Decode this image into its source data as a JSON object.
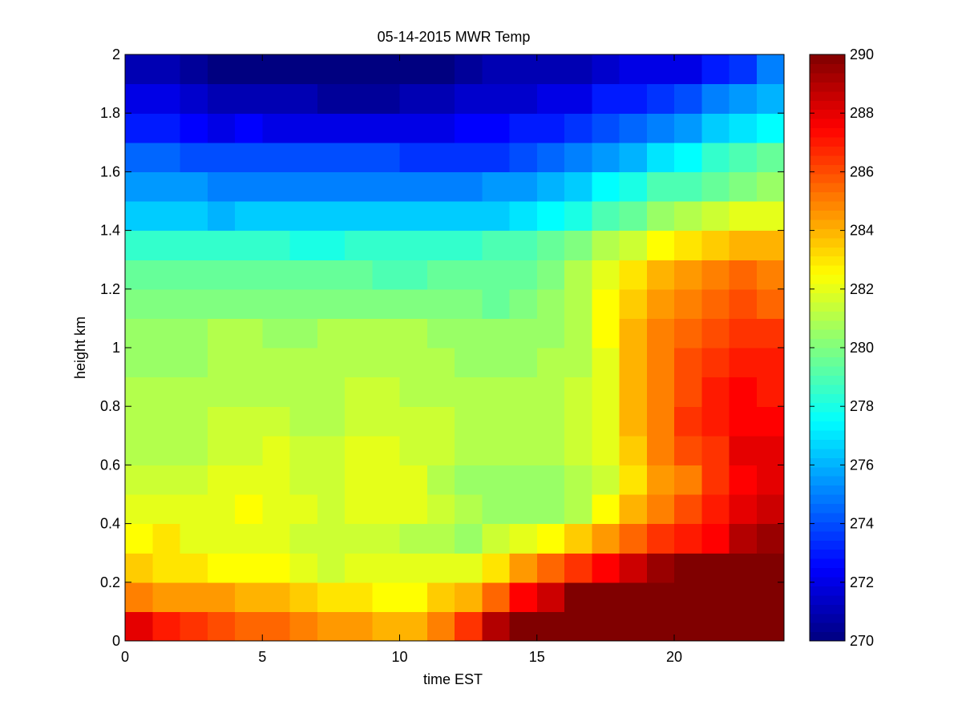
{
  "chart_data": {
    "type": "heatmap",
    "title": "05-14-2015 MWR Temp",
    "xlabel": "time EST",
    "ylabel": "height km",
    "xlim": [
      0,
      24
    ],
    "ylim": [
      0,
      2
    ],
    "xticks": [
      0,
      5,
      10,
      15,
      20
    ],
    "yticks": [
      0,
      0.2,
      0.4,
      0.6,
      0.8,
      1,
      1.2,
      1.4,
      1.6,
      1.8,
      2
    ],
    "x": [
      0,
      1,
      2,
      3,
      4,
      5,
      6,
      7,
      8,
      9,
      10,
      11,
      12,
      13,
      14,
      15,
      16,
      17,
      18,
      19,
      20,
      21,
      22,
      23
    ],
    "y": [
      0,
      0.1,
      0.2,
      0.3,
      0.4,
      0.5,
      0.6,
      0.7,
      0.8,
      0.9,
      1.0,
      1.1,
      1.2,
      1.3,
      1.4,
      1.5,
      1.6,
      1.7,
      1.8,
      1.9,
      2.0
    ],
    "z_units": "K",
    "colorbar": {
      "colormap": "jet",
      "clim": [
        270,
        290
      ],
      "ticks": [
        270,
        272,
        274,
        276,
        278,
        280,
        282,
        284,
        286,
        288,
        290
      ]
    },
    "z": [
      [
        288.0,
        287.0,
        286.5,
        286.0,
        285.5,
        285.5,
        285.0,
        284.5,
        284.5,
        284.0,
        284.0,
        285.0,
        286.5,
        289.0,
        290.5,
        291.0,
        291.0,
        291.0,
        291.0,
        291.0,
        291.0,
        291.0,
        291.0,
        291.0
      ],
      [
        285.0,
        284.5,
        284.5,
        284.5,
        284.0,
        284.0,
        283.5,
        283.0,
        283.0,
        282.5,
        282.5,
        283.5,
        284.0,
        285.5,
        287.5,
        288.5,
        291.0,
        291.0,
        291.0,
        291.0,
        291.0,
        291.0,
        291.0,
        291.0
      ],
      [
        283.5,
        283.0,
        283.0,
        282.5,
        282.5,
        282.5,
        282.0,
        281.5,
        282.0,
        282.0,
        282.0,
        282.0,
        282.0,
        283.0,
        284.5,
        285.5,
        286.5,
        287.5,
        288.5,
        289.5,
        291.0,
        291.0,
        291.0,
        290.0
      ],
      [
        282.5,
        283.0,
        282.0,
        282.0,
        282.0,
        282.0,
        281.5,
        281.5,
        281.5,
        281.5,
        281.0,
        281.0,
        280.5,
        281.5,
        282.0,
        282.5,
        283.5,
        284.5,
        285.5,
        286.5,
        287.0,
        287.5,
        289.0,
        289.5
      ],
      [
        282.0,
        282.0,
        282.0,
        282.0,
        282.5,
        282.0,
        282.0,
        281.5,
        282.0,
        282.0,
        282.0,
        281.5,
        281.0,
        280.5,
        280.5,
        280.5,
        281.0,
        282.5,
        284.0,
        285.0,
        286.0,
        287.0,
        288.0,
        288.5
      ],
      [
        281.5,
        281.5,
        281.5,
        282.0,
        282.0,
        282.0,
        281.5,
        281.5,
        282.0,
        282.0,
        282.0,
        281.0,
        280.5,
        280.5,
        280.5,
        280.5,
        281.0,
        281.5,
        283.0,
        284.5,
        285.0,
        286.5,
        287.5,
        288.0
      ],
      [
        281.0,
        281.0,
        281.0,
        281.5,
        281.5,
        282.0,
        281.5,
        281.5,
        282.0,
        282.0,
        281.5,
        281.5,
        281.0,
        281.0,
        281.0,
        281.0,
        281.5,
        282.0,
        283.5,
        285.0,
        286.0,
        286.5,
        288.0,
        288.0
      ],
      [
        281.0,
        281.0,
        281.0,
        281.5,
        281.5,
        281.5,
        281.0,
        281.0,
        281.5,
        281.5,
        281.5,
        281.5,
        281.0,
        281.0,
        281.0,
        281.0,
        281.5,
        282.0,
        284.0,
        285.0,
        286.5,
        287.0,
        287.5,
        287.5
      ],
      [
        281.0,
        281.0,
        281.0,
        281.0,
        281.0,
        281.0,
        281.0,
        281.0,
        281.5,
        281.5,
        281.0,
        281.0,
        281.0,
        281.0,
        281.0,
        281.0,
        281.5,
        282.0,
        284.0,
        285.0,
        286.0,
        287.0,
        287.5,
        287.0
      ],
      [
        280.5,
        280.5,
        280.5,
        281.0,
        281.0,
        281.0,
        281.0,
        281.0,
        281.0,
        281.0,
        281.0,
        281.0,
        280.5,
        280.5,
        280.5,
        281.0,
        281.0,
        282.0,
        284.0,
        285.0,
        286.0,
        286.5,
        287.0,
        287.0
      ],
      [
        280.5,
        280.5,
        280.5,
        281.0,
        281.0,
        280.5,
        280.5,
        281.0,
        281.0,
        281.0,
        281.0,
        280.5,
        280.5,
        280.5,
        280.5,
        280.5,
        281.0,
        282.5,
        284.0,
        285.0,
        285.5,
        286.0,
        286.5,
        286.5
      ],
      [
        280.0,
        280.0,
        280.0,
        280.0,
        280.0,
        280.0,
        280.0,
        280.0,
        280.0,
        280.0,
        280.0,
        280.0,
        280.0,
        279.5,
        280.0,
        280.5,
        281.0,
        282.5,
        283.5,
        284.5,
        285.0,
        285.5,
        286.0,
        285.5
      ],
      [
        279.5,
        279.5,
        279.5,
        279.5,
        279.5,
        279.5,
        279.5,
        279.5,
        279.5,
        279.0,
        279.0,
        279.5,
        279.5,
        279.5,
        279.5,
        280.0,
        281.0,
        282.0,
        283.0,
        284.0,
        284.5,
        285.0,
        285.5,
        285.0
      ],
      [
        278.5,
        278.5,
        278.5,
        278.5,
        278.5,
        278.5,
        278.0,
        278.0,
        278.5,
        278.5,
        278.5,
        278.5,
        278.5,
        279.0,
        279.0,
        279.5,
        280.0,
        281.0,
        281.5,
        282.5,
        283.0,
        283.5,
        284.0,
        284.0
      ],
      [
        276.5,
        276.5,
        276.5,
        276.0,
        276.5,
        276.5,
        276.5,
        276.5,
        276.5,
        276.5,
        276.5,
        276.5,
        276.5,
        276.5,
        277.0,
        277.5,
        278.0,
        279.0,
        279.5,
        280.5,
        281.0,
        281.5,
        282.0,
        282.0
      ],
      [
        275.5,
        275.5,
        275.5,
        275.0,
        275.0,
        275.0,
        275.0,
        275.0,
        275.0,
        275.0,
        275.0,
        275.0,
        275.0,
        275.5,
        275.5,
        276.0,
        276.5,
        277.5,
        278.0,
        279.0,
        279.0,
        279.5,
        280.0,
        280.5
      ],
      [
        274.5,
        274.5,
        274.0,
        274.0,
        274.0,
        274.0,
        274.0,
        274.0,
        274.0,
        274.0,
        273.5,
        273.5,
        273.5,
        273.5,
        274.0,
        274.5,
        275.0,
        275.5,
        276.0,
        277.0,
        277.5,
        278.5,
        279.0,
        279.5
      ],
      [
        273.0,
        273.0,
        272.5,
        272.0,
        272.5,
        272.0,
        272.0,
        272.0,
        272.0,
        272.0,
        272.0,
        272.0,
        272.5,
        272.5,
        273.0,
        273.0,
        273.5,
        274.0,
        274.5,
        275.0,
        275.5,
        276.5,
        277.0,
        277.5
      ],
      [
        272.0,
        272.0,
        271.5,
        271.0,
        271.0,
        271.0,
        271.0,
        270.5,
        270.5,
        270.5,
        271.0,
        271.0,
        271.5,
        271.5,
        271.5,
        272.0,
        272.0,
        273.0,
        273.0,
        273.5,
        274.0,
        275.0,
        275.5,
        276.0
      ],
      [
        271.0,
        271.0,
        270.5,
        270.0,
        270.0,
        269.5,
        269.5,
        269.5,
        269.5,
        270.0,
        270.0,
        270.0,
        270.5,
        271.0,
        271.0,
        271.0,
        271.0,
        271.5,
        272.0,
        272.0,
        272.0,
        273.0,
        273.5,
        275.0
      ]
    ]
  }
}
